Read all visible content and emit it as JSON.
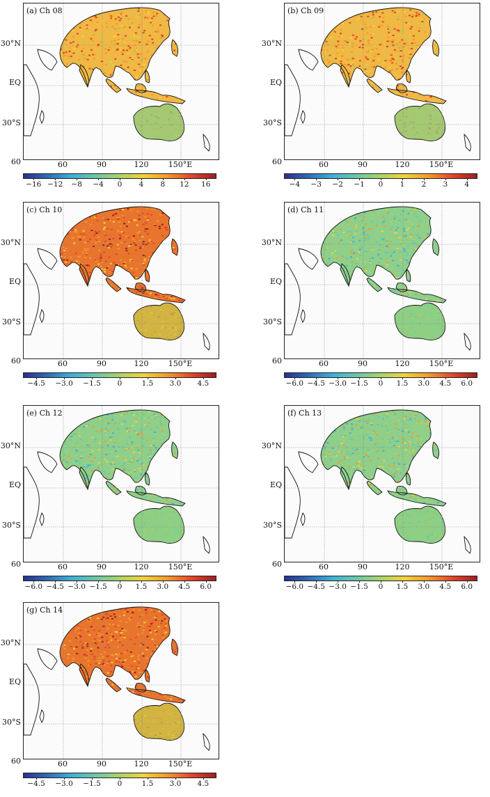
{
  "map": {
    "lat_labels": [
      "30°N",
      "EQ",
      "30°S",
      "60"
    ],
    "lon_labels": [
      "60",
      "90",
      "120",
      "150°E"
    ]
  },
  "colormap": [
    "#2b2f8f",
    "#2f6bb8",
    "#3fb0d8",
    "#6cc6a8",
    "#a9d46a",
    "#f2d23a",
    "#f39a2c",
    "#e2452b",
    "#9e1f1f"
  ],
  "panels": [
    {
      "label": "(a) Ch 08",
      "ticks": [
        "−16",
        "−12",
        "−8",
        "−4",
        "0",
        "4",
        "8",
        "12",
        "16"
      ],
      "pattern": "warm"
    },
    {
      "label": "(b) Ch 09",
      "ticks": [
        "−4",
        "−3",
        "−2",
        "−1",
        "0",
        "1",
        "2",
        "3",
        "4"
      ],
      "pattern": "warm"
    },
    {
      "label": "(c) Ch 10",
      "ticks": [
        "−4.5",
        "−3.0",
        "−1.5",
        "0",
        "1.5",
        "3.0",
        "4.5"
      ],
      "pattern": "hot"
    },
    {
      "label": "(d) Ch 11",
      "ticks": [
        "−6.0",
        "−4.5",
        "−3.0",
        "−1.5",
        "0",
        "1.5",
        "3.0",
        "4.5",
        "6.0"
      ],
      "pattern": "mixed"
    },
    {
      "label": "(e) Ch 12",
      "ticks": [
        "−6.0",
        "−4.5",
        "−3.0",
        "−1.5",
        "0",
        "1.5",
        "3.0",
        "4.5",
        "6.0"
      ],
      "pattern": "mixed"
    },
    {
      "label": "(f) Ch 13",
      "ticks": [
        "−6.0",
        "−4.5",
        "−3.0",
        "−1.5",
        "0",
        "1.5",
        "3.0",
        "4.5",
        "6.0"
      ],
      "pattern": "mixed"
    },
    {
      "label": "(g) Ch 14",
      "ticks": [
        "−4.5",
        "−3.0",
        "−1.5",
        "0",
        "1.5",
        "3.0",
        "4.5"
      ],
      "pattern": "hot"
    }
  ]
}
